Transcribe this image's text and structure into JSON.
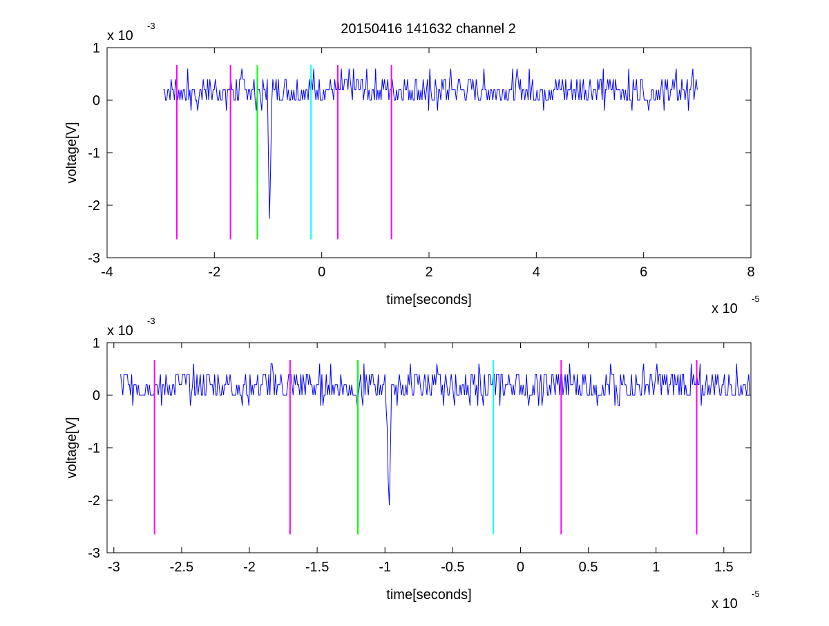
{
  "figure": {
    "title": "20150416 141632 channel 2"
  },
  "chart_data": [
    {
      "type": "line",
      "title": "20150416 141632 channel 2",
      "xlabel": "time[seconds]",
      "ylabel": "voltage[V]",
      "x_exponent_label": "x 10",
      "x_exponent": "-5",
      "y_exponent_label": "x 10",
      "y_exponent": "-3",
      "xlim": [
        -4,
        8
      ],
      "ylim": [
        -3,
        1
      ],
      "xticks": [
        -4,
        -2,
        0,
        2,
        4,
        6,
        8
      ],
      "yticks": [
        -3,
        -2,
        -1,
        0,
        1
      ],
      "xtick_labels": [
        "-4",
        "-2",
        "0",
        "2",
        "4",
        "6",
        "8"
      ],
      "ytick_labels": [
        "-3",
        "-2",
        "-1",
        "0",
        "1"
      ],
      "grid": false,
      "signal": {
        "color": "#0000ff",
        "x_start": -2.95,
        "x_end": 7.0,
        "baseline_levels": [
          0,
          0.2,
          0.4
        ],
        "spike": {
          "x": -0.97,
          "min": -2.4
        }
      },
      "markers": [
        {
          "x": -2.7,
          "y_range": [
            -2.65,
            0.67
          ],
          "color": "#ff00ff"
        },
        {
          "x": -1.7,
          "y_range": [
            -2.65,
            0.67
          ],
          "color": "#ff00ff"
        },
        {
          "x": -1.2,
          "y_range": [
            -2.65,
            0.67
          ],
          "color": "#00ff00"
        },
        {
          "x": -0.2,
          "y_range": [
            -2.65,
            0.67
          ],
          "color": "#00ffff"
        },
        {
          "x": 0.3,
          "y_range": [
            -2.65,
            0.67
          ],
          "color": "#ff00ff"
        },
        {
          "x": 1.3,
          "y_range": [
            -2.65,
            0.67
          ],
          "color": "#ff00ff"
        }
      ]
    },
    {
      "type": "line",
      "title": "",
      "xlabel": "time[seconds]",
      "ylabel": "voltage[V]",
      "x_exponent_label": "x 10",
      "x_exponent": "-5",
      "y_exponent_label": "x 10",
      "y_exponent": "-3",
      "xlim": [
        -3.05,
        1.7
      ],
      "ylim": [
        -3,
        1
      ],
      "xticks": [
        -3,
        -2.5,
        -2,
        -1.5,
        -1,
        -0.5,
        0,
        0.5,
        1,
        1.5
      ],
      "yticks": [
        -3,
        -2,
        -1,
        0,
        1
      ],
      "xtick_labels": [
        "-3",
        "-2.5",
        "-2",
        "-1.5",
        "-1",
        "-0.5",
        "0",
        "0.5",
        "1",
        "1.5"
      ],
      "ytick_labels": [
        "-3",
        "-2",
        "-1",
        "0",
        "1"
      ],
      "grid": false,
      "signal": {
        "color": "#0000ff",
        "x_start": -2.95,
        "x_end": 1.7,
        "baseline_levels": [
          0,
          0.2,
          0.4
        ],
        "spike": {
          "x": -0.97,
          "min": -2.4
        }
      },
      "markers": [
        {
          "x": -2.7,
          "y_range": [
            -2.65,
            0.67
          ],
          "color": "#ff00ff"
        },
        {
          "x": -1.7,
          "y_range": [
            -2.65,
            0.67
          ],
          "color": "#ff00ff"
        },
        {
          "x": -1.2,
          "y_range": [
            -2.65,
            0.67
          ],
          "color": "#00ff00"
        },
        {
          "x": -0.2,
          "y_range": [
            -2.65,
            0.67
          ],
          "color": "#00ffff"
        },
        {
          "x": 0.3,
          "y_range": [
            -2.65,
            0.67
          ],
          "color": "#ff00ff"
        },
        {
          "x": 1.3,
          "y_range": [
            -2.65,
            0.67
          ],
          "color": "#ff00ff"
        }
      ]
    }
  ]
}
